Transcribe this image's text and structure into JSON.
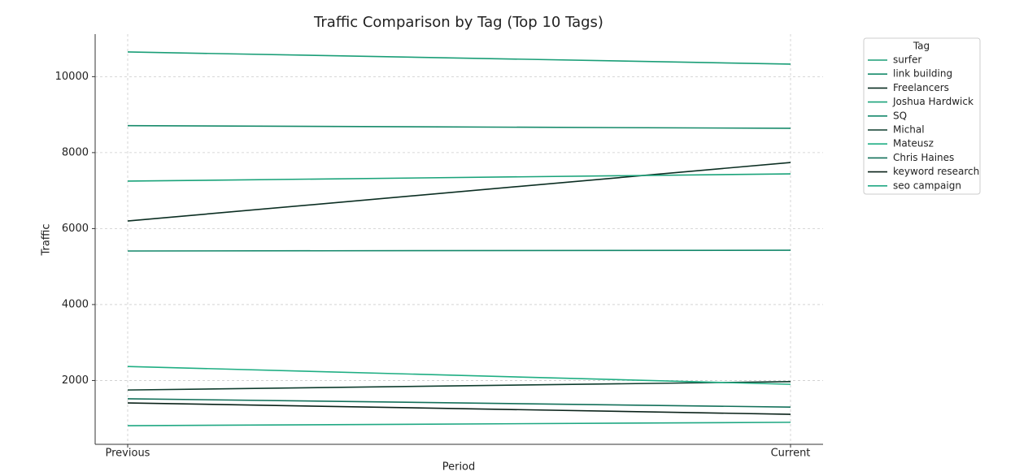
{
  "chart_data": {
    "type": "line",
    "title": "Traffic Comparison by Tag (Top 10 Tags)",
    "x_label": "Period",
    "y_label": "Traffic",
    "categories": [
      "Previous",
      "Current"
    ],
    "ylim": [
      320,
      11120
    ],
    "yticks": [
      2000,
      4000,
      6000,
      8000,
      10000
    ],
    "grid": true,
    "legend_title": "Tag",
    "legend_position": "outside-upper-right",
    "series": [
      {
        "name": "surfer",
        "color": "#1a9e77",
        "values": [
          10650,
          10330
        ]
      },
      {
        "name": "link building",
        "color": "#168a6a",
        "values": [
          8710,
          8640
        ]
      },
      {
        "name": "Freelancers",
        "color": "#0b2e22",
        "values": [
          6200,
          7740
        ]
      },
      {
        "name": "Joshua Hardwick",
        "color": "#1aa37a",
        "values": [
          7250,
          7440
        ]
      },
      {
        "name": "SQ",
        "color": "#13876a",
        "values": [
          5410,
          5430
        ]
      },
      {
        "name": "Michal",
        "color": "#0f3d2e",
        "values": [
          1750,
          1970
        ]
      },
      {
        "name": "Mateusz",
        "color": "#1fae83",
        "values": [
          2370,
          1900
        ]
      },
      {
        "name": "Chris Haines",
        "color": "#13705a",
        "values": [
          1520,
          1300
        ]
      },
      {
        "name": "keyword research",
        "color": "#0a2219",
        "values": [
          1410,
          1110
        ]
      },
      {
        "name": "seo campaign",
        "color": "#20a883",
        "values": [
          810,
          900
        ]
      }
    ]
  }
}
